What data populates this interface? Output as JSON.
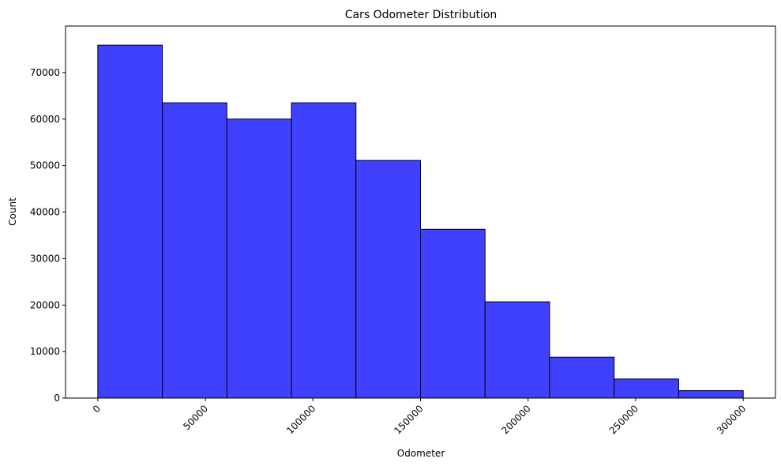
{
  "chart_data": {
    "type": "bar",
    "subtype": "histogram",
    "title": "Cars Odometer Distribution",
    "xlabel": "Odometer",
    "ylabel": "Count",
    "xlim": [
      -15000,
      315000
    ],
    "ylim": [
      0,
      80000
    ],
    "xticks": [
      0,
      50000,
      100000,
      150000,
      200000,
      250000,
      300000
    ],
    "yticks": [
      0,
      10000,
      20000,
      30000,
      40000,
      50000,
      60000,
      70000
    ],
    "xtick_rotation": 45,
    "grid": false,
    "legend": "none",
    "bar_color": "#4040ff",
    "edge_color": "#000000",
    "bins": [
      {
        "x0": 0,
        "x1": 30000,
        "value": 75900
      },
      {
        "x0": 30000,
        "x1": 60000,
        "value": 63500
      },
      {
        "x0": 60000,
        "x1": 90000,
        "value": 60000
      },
      {
        "x0": 90000,
        "x1": 120000,
        "value": 63500
      },
      {
        "x0": 120000,
        "x1": 150000,
        "value": 51100
      },
      {
        "x0": 150000,
        "x1": 180000,
        "value": 36300
      },
      {
        "x0": 180000,
        "x1": 210000,
        "value": 20700
      },
      {
        "x0": 210000,
        "x1": 240000,
        "value": 8800
      },
      {
        "x0": 240000,
        "x1": 270000,
        "value": 4100
      },
      {
        "x0": 270000,
        "x1": 300000,
        "value": 1600
      }
    ]
  }
}
